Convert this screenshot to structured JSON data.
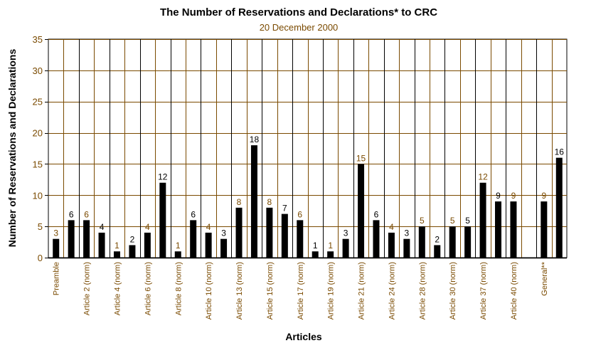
{
  "chart_data": {
    "type": "bar",
    "title": "The Number of Reservations and Declarations* to CRC",
    "subtitle": "20 December 2000",
    "xlabel": "Articles",
    "ylabel": "Number of Reservations and Declarations",
    "ylim": [
      0,
      35
    ],
    "yticks": [
      "0",
      "5",
      "10",
      "15",
      "20",
      "25",
      "30",
      "35"
    ],
    "grid": true,
    "values": [
      3,
      6,
      6,
      4,
      1,
      2,
      4,
      12,
      1,
      6,
      4,
      3,
      8,
      18,
      8,
      7,
      6,
      1,
      1,
      3,
      15,
      6,
      4,
      3,
      5,
      2,
      5,
      5,
      12,
      9,
      9,
      null,
      9,
      16
    ],
    "value_labels": [
      "3",
      "6",
      "6",
      "4",
      "1",
      "2",
      "4",
      "12",
      "1",
      "6",
      "4",
      "3",
      "8",
      "18",
      "8",
      "7",
      "6",
      "1",
      "1",
      "3",
      "15",
      "6",
      "4",
      "3",
      "5",
      "2",
      "5",
      "5",
      "12",
      "9",
      "9",
      "",
      "9",
      "16"
    ],
    "x_tick_labels": [
      "Preamble",
      "Article 2 (norm)",
      "Article 4 (norm)",
      "Article 6 (norm)",
      "Article 8 (norm)",
      "Article 10 (norm)",
      "Article 13 (norm)",
      "Article 15 (norm)",
      "Article 17 (norm)",
      "Article 19 (norm)",
      "Article 21 (norm)",
      "Article 24 (norm)",
      "Article 28 (norm)",
      "Article 30 (norm)",
      "Article 37 (norm)",
      "Article 40 (norm)",
      "General**"
    ],
    "x_tick_positions": [
      0,
      2,
      4,
      6,
      8,
      10,
      12,
      14,
      16,
      18,
      20,
      22,
      24,
      26,
      28,
      30,
      32
    ],
    "colors": {
      "bar": "#000000",
      "label_black": "#000000",
      "label_brown": "#7a4a00",
      "grid_brown": "#7a4a00",
      "grid_black": "#000000",
      "text_brown": "#7a4a00"
    }
  }
}
